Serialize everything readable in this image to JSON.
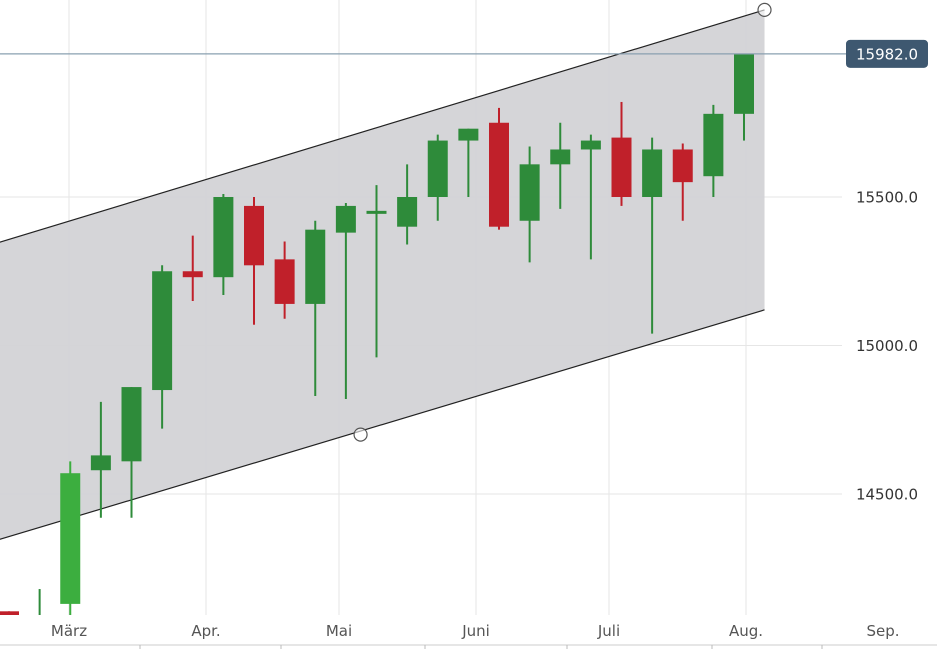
{
  "chart_data": {
    "type": "candlestick",
    "title": "",
    "xlabel": "",
    "ylabel": "",
    "ylim": [
      14000,
      16150
    ],
    "y_ticks": [
      {
        "value": 14500,
        "label": "14500.0"
      },
      {
        "value": 15000,
        "label": "15000.0"
      },
      {
        "value": 15500,
        "label": "15500.0"
      }
    ],
    "x_ticks": [
      "März",
      "Apr.",
      "Mai",
      "Juni",
      "Juli",
      "Aug.",
      "Sep."
    ],
    "current_price": {
      "value": 15982,
      "label": "15982.0"
    },
    "grid": true,
    "colors": {
      "up": "#2e8b3a",
      "up_last": "#3cae3f",
      "down": "#c0202a",
      "channel_fill": "#d3d3d6",
      "channel_line": "#222222",
      "price_line": "#8aa0b0",
      "price_tag": "#3e5870"
    },
    "candles": [
      {
        "open": 14105,
        "high": 14105,
        "low": 14080,
        "close": 14080
      },
      {
        "open": 14080,
        "high": 14180,
        "low": 14020,
        "close": 14080
      },
      {
        "open": 14130,
        "high": 14610,
        "low": 14090,
        "close": 14570
      },
      {
        "open": 14580,
        "high": 14810,
        "low": 14420,
        "close": 14630
      },
      {
        "open": 14610,
        "high": 14860,
        "low": 14420,
        "close": 14860
      },
      {
        "open": 14850,
        "high": 15270,
        "low": 14720,
        "close": 15250
      },
      {
        "open": 15250,
        "high": 15370,
        "low": 15150,
        "close": 15230
      },
      {
        "open": 15230,
        "high": 15510,
        "low": 15170,
        "close": 15500
      },
      {
        "open": 15470,
        "high": 15500,
        "low": 15070,
        "close": 15270
      },
      {
        "open": 15290,
        "high": 15350,
        "low": 15090,
        "close": 15140
      },
      {
        "open": 15140,
        "high": 15420,
        "low": 14830,
        "close": 15390
      },
      {
        "open": 15380,
        "high": 15480,
        "low": 14820,
        "close": 15470
      },
      {
        "open": 15440,
        "high": 15540,
        "low": 14960,
        "close": 15450
      },
      {
        "open": 15400,
        "high": 15610,
        "low": 15340,
        "close": 15500
      },
      {
        "open": 15500,
        "high": 15710,
        "low": 15420,
        "close": 15690
      },
      {
        "open": 15690,
        "high": 15730,
        "low": 15500,
        "close": 15730
      },
      {
        "open": 15750,
        "high": 15800,
        "low": 15390,
        "close": 15400
      },
      {
        "open": 15420,
        "high": 15670,
        "low": 15280,
        "close": 15610
      },
      {
        "open": 15610,
        "high": 15750,
        "low": 15460,
        "close": 15660
      },
      {
        "open": 15660,
        "high": 15710,
        "low": 15290,
        "close": 15690
      },
      {
        "open": 15700,
        "high": 15820,
        "low": 15470,
        "close": 15500
      },
      {
        "open": 15500,
        "high": 15700,
        "low": 15040,
        "close": 15660
      },
      {
        "open": 15660,
        "high": 15680,
        "low": 15420,
        "close": 15550
      },
      {
        "open": 15570,
        "high": 15810,
        "low": 15500,
        "close": 15780
      },
      {
        "open": 15780,
        "high": 15982,
        "low": 15690,
        "close": 15982
      }
    ],
    "channel": {
      "upper_start": {
        "candle": -2.15,
        "value": 15290
      },
      "upper_end": {
        "candle": 24.67,
        "value": 16130
      },
      "lower_start": {
        "candle": -2.15,
        "value": 14290
      },
      "lower_end": {
        "candle": 24.67,
        "value": 15120
      },
      "anchor_mid": {
        "candle": 11.48,
        "value": 14700
      }
    }
  }
}
